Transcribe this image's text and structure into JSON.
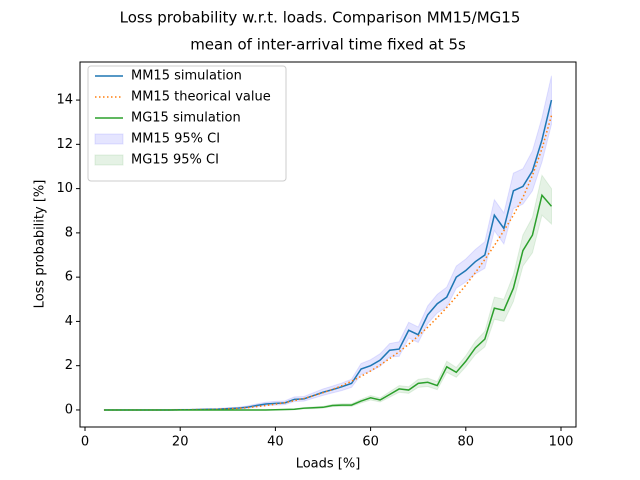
{
  "chart_data": {
    "type": "line",
    "suptitle": "Loss probability w.r.t. loads. Comparison MM15/MG15",
    "title": "mean of inter-arrival time fixed at 5s",
    "xlabel": "Loads [%]",
    "ylabel": "Loss probability [%]",
    "x": [
      4,
      6,
      8,
      10,
      12,
      14,
      16,
      18,
      20,
      22,
      24,
      26,
      28,
      30,
      32,
      34,
      36,
      38,
      40,
      42,
      44,
      46,
      48,
      50,
      52,
      54,
      56,
      58,
      60,
      62,
      64,
      66,
      68,
      70,
      72,
      74,
      76,
      78,
      80,
      82,
      84,
      86,
      88,
      90,
      92,
      94,
      96,
      98
    ],
    "xlim": [
      -1.05,
      103.15
    ],
    "xticks": [
      0,
      20,
      40,
      60,
      80,
      100
    ],
    "ylim": [
      -0.77,
      15.72
    ],
    "yticks": [
      0,
      2,
      4,
      6,
      8,
      10,
      12,
      14
    ],
    "legend": "upper left",
    "series": [
      {
        "name": "MM15 simulation",
        "color": "#1f77b4",
        "style": "solid",
        "values": [
          0,
          0,
          0,
          0,
          0,
          0,
          0,
          0,
          0.01,
          0.01,
          0.02,
          0.03,
          0.04,
          0.06,
          0.08,
          0.12,
          0.2,
          0.27,
          0.3,
          0.32,
          0.48,
          0.5,
          0.65,
          0.8,
          0.92,
          1.05,
          1.2,
          1.85,
          2.0,
          2.25,
          2.7,
          2.75,
          3.6,
          3.4,
          4.3,
          4.8,
          5.1,
          6.0,
          6.3,
          6.7,
          7.0,
          8.8,
          8.2,
          9.9,
          10.1,
          10.8,
          12.2,
          14.0
        ]
      },
      {
        "name": "MM15 theorical value",
        "color": "#ff7f0e",
        "style": "dotted",
        "values": [
          0,
          0,
          0,
          0,
          0,
          0,
          0,
          0,
          0.01,
          0.01,
          0.02,
          0.02,
          0.03,
          0.05,
          0.07,
          0.1,
          0.15,
          0.2,
          0.26,
          0.33,
          0.42,
          0.52,
          0.64,
          0.78,
          0.93,
          1.1,
          1.3,
          1.52,
          1.76,
          2.03,
          2.32,
          2.63,
          2.97,
          3.34,
          3.74,
          4.17,
          4.63,
          5.12,
          5.64,
          6.2,
          6.8,
          7.43,
          8.1,
          8.8,
          9.6,
          10.6,
          11.8,
          13.3
        ]
      },
      {
        "name": "MG15 simulation",
        "color": "#2ca02c",
        "style": "solid",
        "values": [
          0,
          0,
          0,
          0,
          0,
          0,
          0,
          0,
          0,
          0,
          0,
          0,
          0,
          0,
          0,
          0,
          0,
          0,
          0.01,
          0.02,
          0.03,
          0.08,
          0.1,
          0.12,
          0.2,
          0.22,
          0.22,
          0.4,
          0.55,
          0.45,
          0.7,
          0.95,
          0.9,
          1.2,
          1.25,
          1.1,
          1.95,
          1.7,
          2.2,
          2.8,
          3.2,
          4.6,
          4.5,
          5.5,
          7.2,
          7.9,
          9.7,
          9.2
        ]
      }
    ],
    "bands": [
      {
        "name": "MM15 95% CI",
        "color": "#0000ff",
        "lower": [
          0,
          0,
          0,
          0,
          0,
          0,
          0,
          0,
          0,
          0,
          0,
          0.01,
          0.02,
          0.03,
          0.05,
          0.07,
          0.14,
          0.2,
          0.22,
          0.24,
          0.38,
          0.4,
          0.53,
          0.66,
          0.77,
          0.88,
          1.02,
          1.6,
          1.75,
          1.97,
          2.4,
          2.42,
          3.25,
          3.05,
          3.9,
          4.38,
          4.65,
          5.5,
          5.78,
          6.15,
          6.4,
          8.1,
          7.5,
          9.1,
          9.3,
          9.9,
          11.2,
          12.9
        ],
        "upper": [
          0.01,
          0.01,
          0.01,
          0.01,
          0.01,
          0.01,
          0.02,
          0.02,
          0.03,
          0.04,
          0.05,
          0.06,
          0.07,
          0.1,
          0.12,
          0.18,
          0.27,
          0.35,
          0.39,
          0.41,
          0.59,
          0.61,
          0.78,
          0.95,
          1.08,
          1.22,
          1.39,
          2.1,
          2.27,
          2.54,
          3.0,
          3.08,
          3.96,
          3.75,
          4.7,
          5.22,
          5.55,
          6.5,
          6.82,
          7.25,
          7.6,
          9.5,
          8.9,
          10.7,
          10.9,
          11.7,
          13.2,
          15.1
        ]
      },
      {
        "name": "MG15 95% CI",
        "color": "#008000",
        "lower": [
          0,
          0,
          0,
          0,
          0,
          0,
          0,
          0,
          0,
          0,
          0,
          0,
          0,
          0,
          0,
          0,
          0,
          0,
          0,
          0,
          0.01,
          0.05,
          0.06,
          0.08,
          0.15,
          0.16,
          0.16,
          0.32,
          0.45,
          0.36,
          0.58,
          0.8,
          0.75,
          1.02,
          1.06,
          0.92,
          1.7,
          1.48,
          1.95,
          2.5,
          2.85,
          4.1,
          4.0,
          4.9,
          6.5,
          7.1,
          8.8,
          8.4
        ],
        "upper": [
          0.01,
          0.01,
          0.01,
          0.01,
          0.01,
          0.01,
          0.01,
          0.01,
          0.01,
          0.01,
          0.01,
          0.01,
          0.01,
          0.01,
          0.01,
          0.01,
          0.01,
          0.01,
          0.02,
          0.03,
          0.05,
          0.11,
          0.14,
          0.16,
          0.25,
          0.28,
          0.28,
          0.48,
          0.65,
          0.54,
          0.82,
          1.1,
          1.05,
          1.38,
          1.44,
          1.28,
          2.2,
          1.92,
          2.45,
          3.1,
          3.55,
          5.1,
          5.0,
          6.1,
          7.9,
          8.7,
          10.6,
          10.0
        ]
      }
    ]
  }
}
